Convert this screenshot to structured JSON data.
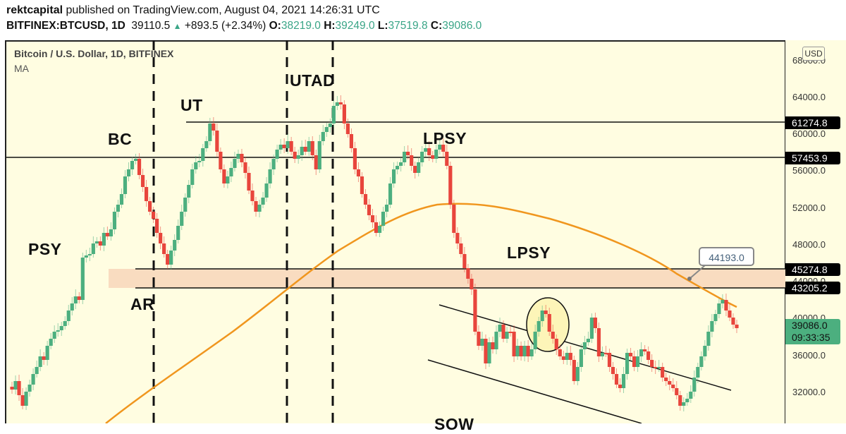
{
  "header": {
    "author": "rektcapital",
    "published_text": "published on TradingView.com, August 04, 2021 14:26:31 UTC",
    "symbol": "BITFINEX:BTCUSD, 1D",
    "price": "39110.5",
    "change_arrow": "▲",
    "change": "+893.5 (+2.34%)",
    "o_label": "O:",
    "o_value": "38219.0",
    "h_label": "H:",
    "h_value": "39249.0",
    "l_label": "L:",
    "l_value": "37519.8",
    "c_label": "C:",
    "c_value": "39086.0"
  },
  "chart": {
    "title": "Bitcoin / U.S. Dollar, 1D, BITFINEX",
    "indicator": "MA",
    "currency_button": "USD",
    "annotations": {
      "psy": "PSY",
      "bc": "BC",
      "ar": "AR",
      "ut": "UT",
      "utad": "UTAD",
      "lpsy1": "LPSY",
      "lpsy2": "LPSY",
      "sow": "SOW"
    },
    "callout_value": "44193.0",
    "last_price": "39086.0",
    "countdown": "09:33:35"
  },
  "axis": {
    "ticks": [
      "68000.0",
      "64000.0",
      "60000.0",
      "56000.0",
      "52000.0",
      "48000.0",
      "44000.0",
      "40000.0",
      "36000.0",
      "32000.0"
    ],
    "level_tags": [
      "61274.8",
      "57453.9",
      "45274.8",
      "43205.2"
    ]
  },
  "colors": {
    "background": "#fffde1",
    "up_candle": "#4caf7f",
    "down_candle": "#e8453c",
    "ma_line": "#f0961e",
    "zone": "#f9dcc0"
  },
  "chart_data": {
    "type": "candlestick",
    "title": "Bitcoin / U.S. Dollar, 1D, BITFINEX",
    "xlabel": "",
    "ylabel": "USD",
    "ylim": [
      29000,
      69000
    ],
    "y_ticks": [
      32000,
      36000,
      40000,
      44000,
      48000,
      52000,
      56000,
      60000,
      64000,
      68000
    ],
    "horizontal_levels": [
      61274.8,
      57453.9,
      45274.8,
      43205.2
    ],
    "zone": [
      43205.2,
      45274.8
    ],
    "moving_average_callout": 44193.0,
    "last": {
      "open": 38219.0,
      "high": 39249.0,
      "low": 37519.8,
      "close": 39086.0,
      "change": 893.5,
      "change_pct": 2.34
    },
    "wyckoff_labels": [
      "PSY",
      "BC",
      "AR",
      "UT",
      "UTAD",
      "LPSY",
      "LPSY",
      "SOW"
    ],
    "approx_pivots": [
      {
        "label": "PSY",
        "price": 47000
      },
      {
        "label": "BC",
        "price": 58300
      },
      {
        "label": "AR",
        "price": 43500
      },
      {
        "label": "UT",
        "price": 61700
      },
      {
        "label": "UTAD",
        "price": 64800
      },
      {
        "label": "LPSY",
        "price": 59500
      },
      {
        "label": "SOW",
        "price": 30000
      },
      {
        "label": "recent high",
        "price": 42600
      }
    ]
  }
}
